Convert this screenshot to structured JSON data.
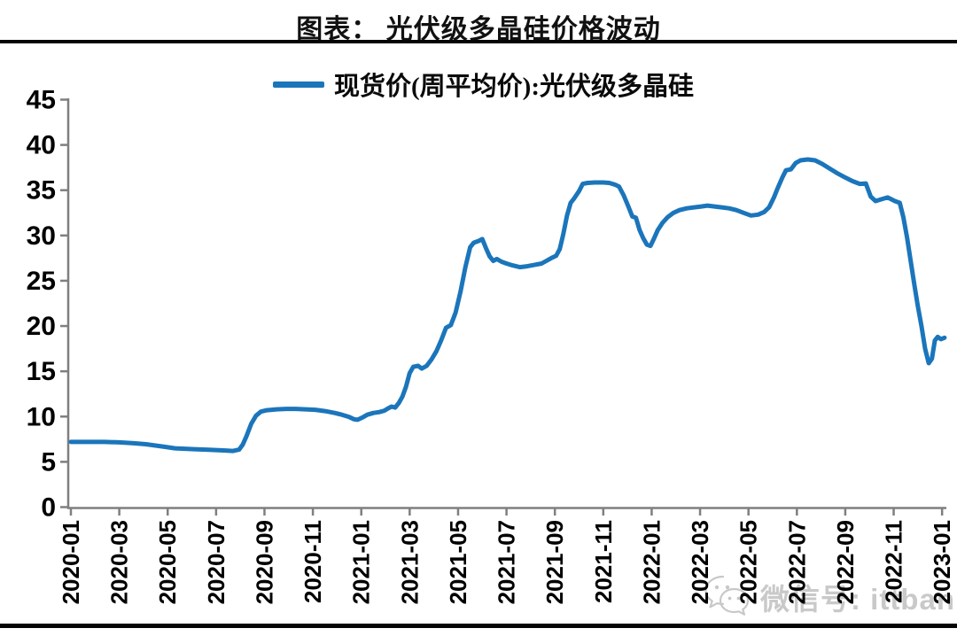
{
  "page": {
    "title": "图表： 光伏级多晶硅价格波动",
    "background": "#FFFFFF",
    "divider_color": "#050505"
  },
  "legend": {
    "label": "现货价(周平均价):光伏级多晶硅",
    "color": "#1B75BB"
  },
  "watermark": {
    "icon": "wechat-icon",
    "text": "微信号: ittbank",
    "color": "#C9C9C9"
  },
  "chart_data": {
    "type": "line",
    "title": "图表： 光伏级多晶硅价格波动",
    "legend_position": "top-center",
    "grid": false,
    "axis_color": "#7F7F7F",
    "tick_label_color": "#000000",
    "y_axis": {
      "min": 0,
      "max": 45,
      "tick_step": 5,
      "ticks": [
        0,
        5,
        10,
        15,
        20,
        25,
        30,
        35,
        40,
        45
      ]
    },
    "x_axis": {
      "unit": "months since 2020-01 (0 = 2020-01, 36 = 2023-01), weekly data",
      "tick_months": [
        0,
        2,
        4,
        6,
        8,
        10,
        12,
        14,
        16,
        18,
        20,
        22,
        24,
        26,
        28,
        30,
        32,
        34,
        36
      ],
      "tick_labels": [
        "2020-01",
        "2020-03",
        "2020-05",
        "2020-07",
        "2020-09",
        "2020-11",
        "2021-01",
        "2021-03",
        "2021-05",
        "2021-07",
        "2021-09",
        "2021-11",
        "2022-01",
        "2022-03",
        "2022-05",
        "2022-07",
        "2022-09",
        "2022-11",
        "2023-01"
      ],
      "label_rotation": -90
    },
    "series": [
      {
        "name": "现货价(周平均价):光伏级多晶硅",
        "color": "#1B75BB",
        "line_width": 5,
        "points": [
          [
            0,
            7.2
          ],
          [
            0.7,
            7.2
          ],
          [
            1.4,
            7.2
          ],
          [
            2,
            7.15
          ],
          [
            2.6,
            7.05
          ],
          [
            3.1,
            6.95
          ],
          [
            3.5,
            6.8
          ],
          [
            3.9,
            6.65
          ],
          [
            4.3,
            6.5
          ],
          [
            4.7,
            6.45
          ],
          [
            5.1,
            6.4
          ],
          [
            5.6,
            6.35
          ],
          [
            6,
            6.3
          ],
          [
            6.4,
            6.25
          ],
          [
            6.7,
            6.2
          ],
          [
            6.95,
            6.35
          ],
          [
            7.1,
            6.9
          ],
          [
            7.25,
            7.8
          ],
          [
            7.45,
            9.2
          ],
          [
            7.65,
            10.1
          ],
          [
            7.85,
            10.55
          ],
          [
            8.1,
            10.7
          ],
          [
            8.5,
            10.8
          ],
          [
            8.9,
            10.85
          ],
          [
            9.3,
            10.85
          ],
          [
            9.7,
            10.8
          ],
          [
            10.1,
            10.75
          ],
          [
            10.5,
            10.6
          ],
          [
            10.9,
            10.4
          ],
          [
            11.2,
            10.2
          ],
          [
            11.5,
            9.95
          ],
          [
            11.7,
            9.7
          ],
          [
            11.85,
            9.65
          ],
          [
            12.05,
            9.9
          ],
          [
            12.25,
            10.2
          ],
          [
            12.5,
            10.4
          ],
          [
            12.75,
            10.5
          ],
          [
            12.95,
            10.65
          ],
          [
            13.1,
            10.9
          ],
          [
            13.25,
            11.1
          ],
          [
            13.4,
            11
          ],
          [
            13.55,
            11.5
          ],
          [
            13.7,
            12.2
          ],
          [
            13.85,
            13.3
          ],
          [
            14,
            14.8
          ],
          [
            14.15,
            15.5
          ],
          [
            14.35,
            15.6
          ],
          [
            14.5,
            15.3
          ],
          [
            14.7,
            15.6
          ],
          [
            14.9,
            16.3
          ],
          [
            15.1,
            17.2
          ],
          [
            15.3,
            18.4
          ],
          [
            15.5,
            19.8
          ],
          [
            15.7,
            20.1
          ],
          [
            15.9,
            21.5
          ],
          [
            16.1,
            23.8
          ],
          [
            16.3,
            26.5
          ],
          [
            16.5,
            28.7
          ],
          [
            16.65,
            29.2
          ],
          [
            16.85,
            29.4
          ],
          [
            17,
            29.6
          ],
          [
            17.15,
            28.6
          ],
          [
            17.3,
            27.7
          ],
          [
            17.45,
            27.2
          ],
          [
            17.6,
            27.4
          ],
          [
            17.8,
            27.1
          ],
          [
            18,
            26.9
          ],
          [
            18.25,
            26.7
          ],
          [
            18.55,
            26.5
          ],
          [
            18.85,
            26.6
          ],
          [
            19.15,
            26.75
          ],
          [
            19.45,
            26.9
          ],
          [
            19.65,
            27.2
          ],
          [
            19.85,
            27.5
          ],
          [
            20.05,
            27.75
          ],
          [
            20.2,
            28.5
          ],
          [
            20.35,
            30.2
          ],
          [
            20.5,
            32.2
          ],
          [
            20.65,
            33.6
          ],
          [
            20.8,
            34.1
          ],
          [
            21,
            34.9
          ],
          [
            21.15,
            35.7
          ],
          [
            21.35,
            35.8
          ],
          [
            21.65,
            35.85
          ],
          [
            22,
            35.85
          ],
          [
            22.25,
            35.8
          ],
          [
            22.5,
            35.6
          ],
          [
            22.65,
            35.4
          ],
          [
            22.85,
            34.4
          ],
          [
            23.05,
            33.1
          ],
          [
            23.2,
            32.1
          ],
          [
            23.35,
            31.95
          ],
          [
            23.5,
            30.6
          ],
          [
            23.65,
            29.7
          ],
          [
            23.8,
            29
          ],
          [
            23.95,
            28.85
          ],
          [
            24.1,
            29.7
          ],
          [
            24.25,
            30.6
          ],
          [
            24.45,
            31.4
          ],
          [
            24.65,
            32
          ],
          [
            24.9,
            32.5
          ],
          [
            25.15,
            32.8
          ],
          [
            25.45,
            33
          ],
          [
            25.75,
            33.1
          ],
          [
            26.05,
            33.2
          ],
          [
            26.3,
            33.3
          ],
          [
            26.6,
            33.2
          ],
          [
            26.9,
            33.1
          ],
          [
            27.2,
            33
          ],
          [
            27.5,
            32.8
          ],
          [
            27.8,
            32.5
          ],
          [
            28.1,
            32.2
          ],
          [
            28.4,
            32.3
          ],
          [
            28.65,
            32.6
          ],
          [
            28.85,
            33.1
          ],
          [
            29.05,
            34.2
          ],
          [
            29.2,
            35.2
          ],
          [
            29.4,
            36.4
          ],
          [
            29.55,
            37.2
          ],
          [
            29.75,
            37.3
          ],
          [
            29.95,
            38
          ],
          [
            30.15,
            38.3
          ],
          [
            30.45,
            38.4
          ],
          [
            30.75,
            38.3
          ],
          [
            31.05,
            37.9
          ],
          [
            31.35,
            37.4
          ],
          [
            31.65,
            36.9
          ],
          [
            32,
            36.4
          ],
          [
            32.3,
            36
          ],
          [
            32.6,
            35.7
          ],
          [
            32.85,
            35.75
          ],
          [
            33.05,
            34.3
          ],
          [
            33.25,
            33.8
          ],
          [
            33.5,
            34
          ],
          [
            33.75,
            34.2
          ],
          [
            34.05,
            33.8
          ],
          [
            34.25,
            33.6
          ],
          [
            34.4,
            32
          ],
          [
            34.55,
            29.8
          ],
          [
            34.7,
            27.2
          ],
          [
            34.85,
            24.6
          ],
          [
            35,
            22.2
          ],
          [
            35.15,
            20
          ],
          [
            35.3,
            17.5
          ],
          [
            35.45,
            15.9
          ],
          [
            35.58,
            16.4
          ],
          [
            35.7,
            18.4
          ],
          [
            35.82,
            18.8
          ],
          [
            35.95,
            18.55
          ],
          [
            36.1,
            18.7
          ]
        ]
      }
    ]
  }
}
